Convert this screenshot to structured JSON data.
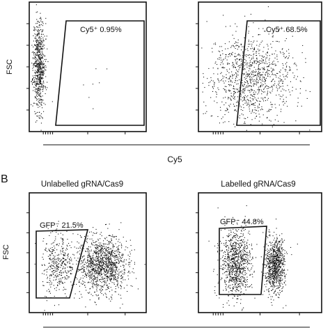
{
  "figure": {
    "section_b_label": "B",
    "colors": {
      "axis": "#111111",
      "dots": "#111111",
      "background": "#ffffff"
    }
  },
  "chart_data": [
    {
      "type": "scatter",
      "title": "",
      "xlabel": "Cy5",
      "ylabel": "FSC",
      "gate": {
        "label": "Cy5⁺ 0.95%",
        "percent": 0.95
      },
      "populations": [
        {
          "cx": 0.08,
          "cy": 0.52,
          "sx": 0.025,
          "sy": 0.18,
          "count": 720
        },
        {
          "cx": 0.35,
          "cy": 0.55,
          "sx": 0.25,
          "sy": 0.18,
          "count": 10
        }
      ],
      "xlim": [
        0,
        1
      ],
      "ylim": [
        0,
        1
      ]
    },
    {
      "type": "scatter",
      "title": "",
      "xlabel": "Cy5",
      "ylabel": "",
      "gate": {
        "label": "Cy5⁺ 68.5%",
        "percent": 68.5
      },
      "populations": [
        {
          "cx": 0.42,
          "cy": 0.42,
          "sx": 0.17,
          "sy": 0.17,
          "count": 1100
        }
      ],
      "xlim": [
        0,
        1
      ],
      "ylim": [
        0,
        1
      ]
    },
    {
      "type": "scatter",
      "title": "Unlabelled gRNA/Cas9",
      "xlabel": "",
      "ylabel": "FSC",
      "gate": {
        "label": "GFP⁻ 21.5%",
        "percent": 21.5
      },
      "populations": [
        {
          "cx": 0.24,
          "cy": 0.4,
          "sx": 0.07,
          "sy": 0.12,
          "count": 380
        },
        {
          "cx": 0.62,
          "cy": 0.4,
          "sx": 0.11,
          "sy": 0.12,
          "count": 1250
        }
      ],
      "xlim": [
        0,
        1
      ],
      "ylim": [
        0,
        1
      ]
    },
    {
      "type": "scatter",
      "title": "Labelled gRNA/Cas9",
      "xlabel": "",
      "ylabel": "",
      "gate": {
        "label": "GFP⁻ 44.8%",
        "percent": 44.8
      },
      "populations": [
        {
          "cx": 0.3,
          "cy": 0.42,
          "sx": 0.065,
          "sy": 0.14,
          "count": 900
        },
        {
          "cx": 0.62,
          "cy": 0.4,
          "sx": 0.04,
          "sy": 0.12,
          "count": 850
        }
      ],
      "xlim": [
        0,
        1
      ],
      "ylim": [
        0,
        1
      ]
    }
  ]
}
